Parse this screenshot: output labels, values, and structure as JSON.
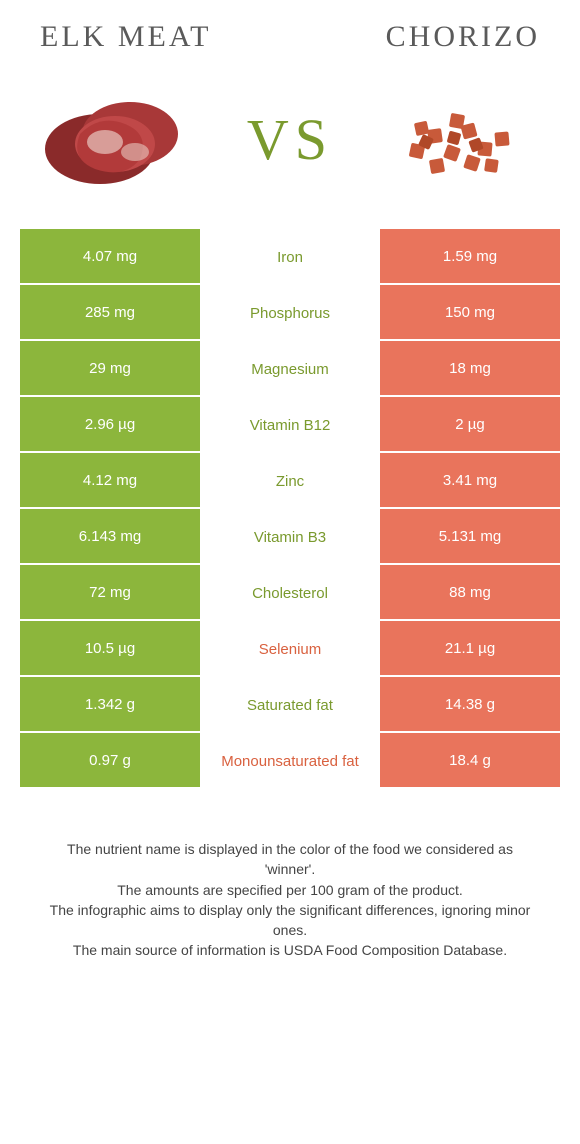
{
  "header": {
    "left_title": "ELK MEAT",
    "right_title": "CHORIZO",
    "vs_label": "VS"
  },
  "colors": {
    "left": "#8cb63c",
    "right": "#e9745c",
    "left_text": "#7a9a2e",
    "right_text": "#d9613f",
    "row_border": "#ffffff",
    "title_text": "#5a5a5a"
  },
  "table": {
    "rows": [
      {
        "left": "4.07 mg",
        "label": "Iron",
        "right": "1.59 mg",
        "winner": "left"
      },
      {
        "left": "285 mg",
        "label": "Phosphorus",
        "right": "150 mg",
        "winner": "left"
      },
      {
        "left": "29 mg",
        "label": "Magnesium",
        "right": "18 mg",
        "winner": "left"
      },
      {
        "left": "2.96 µg",
        "label": "Vitamin B12",
        "right": "2 µg",
        "winner": "left"
      },
      {
        "left": "4.12 mg",
        "label": "Zinc",
        "right": "3.41 mg",
        "winner": "left"
      },
      {
        "left": "6.143 mg",
        "label": "Vitamin B3",
        "right": "5.131 mg",
        "winner": "left"
      },
      {
        "left": "72 mg",
        "label": "Cholesterol",
        "right": "88 mg",
        "winner": "left"
      },
      {
        "left": "10.5 µg",
        "label": "Selenium",
        "right": "21.1 µg",
        "winner": "right"
      },
      {
        "left": "1.342 g",
        "label": "Saturated fat",
        "right": "14.38 g",
        "winner": "left"
      },
      {
        "left": "0.97 g",
        "label": "Monounsaturated fat",
        "right": "18.4 g",
        "winner": "right"
      }
    ]
  },
  "footer": {
    "line1": "The nutrient name is displayed in the color of the food we considered as 'winner'.",
    "line2": "The amounts are specified per 100 gram of the product.",
    "line3": "The infographic aims to display only the significant differences, ignoring minor ones.",
    "line4": "The main source of information is USDA Food Composition Database."
  }
}
